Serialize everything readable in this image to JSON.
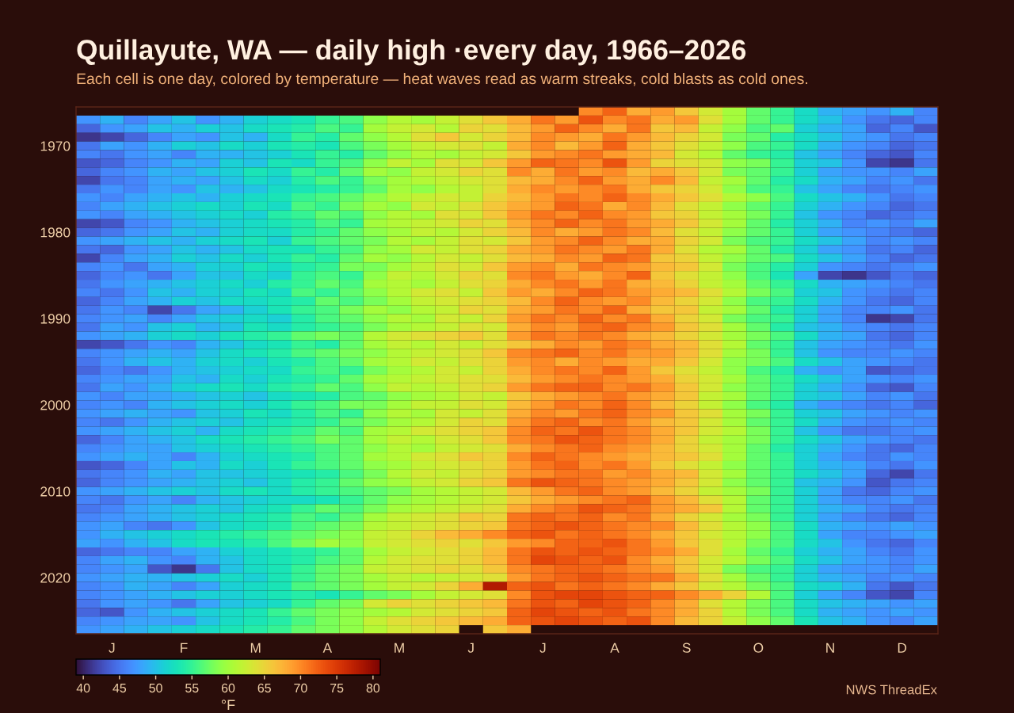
{
  "chart_data": {
    "type": "heatmap",
    "title": "Quillayute, WA — daily high ·every day, 1966–2026",
    "subtitle": "Each cell is one day, colored by temperature — heat waves read as warm streaks, cold blasts as cold ones.",
    "categories": [
      null,
      "J",
      null,
      null,
      "F",
      null,
      null,
      "M",
      null,
      null,
      "A",
      null,
      null,
      "M",
      null,
      null,
      "J",
      null,
      null,
      "J",
      null,
      null,
      "A",
      null,
      null,
      "S",
      null,
      null,
      "O",
      null,
      null,
      "N",
      null,
      null,
      "D",
      null
    ],
    "y_categories": [
      null,
      null,
      null,
      null,
      "1970",
      null,
      null,
      null,
      null,
      null,
      null,
      null,
      null,
      null,
      "1980",
      null,
      null,
      null,
      null,
      null,
      null,
      null,
      null,
      null,
      "1990",
      null,
      null,
      null,
      null,
      null,
      null,
      null,
      null,
      null,
      "2000",
      null,
      null,
      null,
      null,
      null,
      null,
      null,
      null,
      null,
      "2010",
      null,
      null,
      null,
      null,
      null,
      null,
      null,
      null,
      null,
      "2020",
      null,
      null,
      null,
      null,
      null,
      null
    ],
    "cells": [
      [
        null,
        null,
        null,
        null,
        null,
        null,
        null,
        null,
        null,
        null,
        null,
        null,
        null,
        null,
        null,
        null,
        null,
        null,
        null,
        null,
        null,
        70,
        72,
        68,
        69,
        66,
        63,
        60,
        57,
        55,
        52,
        49,
        48,
        47,
        49,
        46
      ],
      [
        47,
        49,
        46,
        48,
        50,
        47,
        49,
        51,
        52,
        53,
        55,
        56,
        59,
        61,
        60,
        62,
        64,
        66,
        68,
        71,
        69,
        73,
        70,
        71,
        68,
        69,
        64,
        60,
        57,
        55,
        52,
        50,
        47,
        45,
        44,
        46
      ],
      [
        44,
        47,
        48,
        50,
        49,
        51,
        50,
        52,
        53,
        54,
        56,
        55,
        60,
        62,
        63,
        61,
        65,
        64,
        67,
        69,
        72,
        70,
        68,
        71,
        66,
        67,
        62,
        59,
        56,
        57,
        51,
        49,
        48,
        44,
        46,
        43
      ],
      [
        41,
        42,
        44,
        46,
        48,
        47,
        50,
        49,
        52,
        55,
        54,
        57,
        59,
        61,
        64,
        66,
        63,
        65,
        67,
        70,
        69,
        68,
        71,
        69,
        67,
        65,
        63,
        58,
        57,
        54,
        52,
        50,
        48,
        47,
        45,
        46
      ],
      [
        45,
        48,
        47,
        49,
        51,
        50,
        52,
        51,
        53,
        54,
        53,
        56,
        58,
        60,
        62,
        63,
        64,
        62,
        68,
        70,
        67,
        69,
        72,
        68,
        66,
        64,
        62,
        59,
        56,
        55,
        52,
        49,
        47,
        46,
        44,
        45
      ],
      [
        46,
        45,
        47,
        48,
        46,
        49,
        49,
        50,
        51,
        53,
        55,
        54,
        57,
        59,
        61,
        60,
        62,
        63,
        66,
        69,
        70,
        71,
        69,
        68,
        67,
        63,
        61,
        57,
        55,
        54,
        50,
        48,
        46,
        44,
        43,
        46
      ],
      [
        43,
        44,
        46,
        47,
        49,
        48,
        51,
        50,
        53,
        52,
        55,
        56,
        59,
        62,
        60,
        64,
        63,
        66,
        69,
        72,
        71,
        70,
        73,
        69,
        65,
        64,
        63,
        59,
        58,
        55,
        51,
        50,
        47,
        42,
        41,
        45
      ],
      [
        44,
        46,
        47,
        49,
        48,
        50,
        51,
        53,
        52,
        55,
        54,
        57,
        60,
        59,
        62,
        63,
        65,
        64,
        70,
        68,
        71,
        69,
        70,
        67,
        68,
        66,
        63,
        58,
        57,
        55,
        51,
        48,
        47,
        47,
        46,
        48
      ],
      [
        42,
        45,
        46,
        48,
        49,
        48,
        50,
        52,
        51,
        54,
        56,
        55,
        58,
        60,
        61,
        62,
        63,
        64,
        67,
        68,
        70,
        72,
        69,
        68,
        70,
        67,
        62,
        60,
        57,
        54,
        52,
        49,
        48,
        46,
        47,
        45
      ],
      [
        45,
        47,
        46,
        48,
        47,
        50,
        49,
        50,
        52,
        53,
        54,
        55,
        57,
        60,
        59,
        61,
        62,
        64,
        68,
        70,
        69,
        70,
        71,
        68,
        66,
        65,
        63,
        59,
        56,
        55,
        50,
        48,
        46,
        45,
        46,
        47
      ],
      [
        47,
        46,
        48,
        49,
        50,
        49,
        51,
        52,
        53,
        55,
        56,
        57,
        59,
        61,
        62,
        63,
        62,
        65,
        67,
        69,
        71,
        70,
        72,
        70,
        68,
        66,
        64,
        61,
        59,
        56,
        52,
        50,
        49,
        47,
        45,
        46
      ],
      [
        46,
        48,
        49,
        50,
        51,
        52,
        51,
        53,
        52,
        56,
        55,
        58,
        60,
        59,
        63,
        62,
        64,
        66,
        68,
        69,
        72,
        71,
        68,
        70,
        67,
        64,
        62,
        59,
        57,
        55,
        51,
        49,
        47,
        46,
        44,
        45
      ],
      [
        47,
        46,
        48,
        49,
        50,
        51,
        52,
        51,
        54,
        55,
        57,
        56,
        59,
        61,
        60,
        64,
        63,
        66,
        69,
        71,
        70,
        72,
        70,
        69,
        66,
        65,
        62,
        60,
        58,
        55,
        50,
        47,
        46,
        44,
        45,
        46
      ],
      [
        42,
        43,
        46,
        47,
        49,
        50,
        51,
        52,
        53,
        54,
        56,
        55,
        60,
        61,
        62,
        63,
        65,
        64,
        68,
        70,
        72,
        70,
        71,
        69,
        68,
        66,
        63,
        60,
        57,
        54,
        51,
        49,
        46,
        47,
        46,
        48
      ],
      [
        44,
        45,
        47,
        48,
        50,
        49,
        51,
        52,
        52,
        54,
        55,
        57,
        59,
        60,
        62,
        61,
        63,
        65,
        67,
        70,
        68,
        69,
        71,
        70,
        67,
        64,
        62,
        59,
        57,
        55,
        51,
        48,
        47,
        46,
        45,
        44
      ],
      [
        47,
        48,
        49,
        50,
        49,
        51,
        52,
        53,
        51,
        55,
        56,
        57,
        58,
        61,
        60,
        62,
        64,
        63,
        66,
        69,
        70,
        72,
        70,
        68,
        68,
        65,
        63,
        58,
        56,
        55,
        52,
        50,
        48,
        46,
        47,
        46
      ],
      [
        45,
        44,
        47,
        48,
        50,
        49,
        50,
        52,
        53,
        53,
        55,
        56,
        59,
        60,
        63,
        62,
        64,
        65,
        68,
        69,
        71,
        70,
        69,
        71,
        68,
        64,
        61,
        60,
        57,
        54,
        51,
        48,
        47,
        45,
        46,
        44
      ],
      [
        42,
        46,
        48,
        49,
        51,
        50,
        52,
        51,
        53,
        55,
        54,
        57,
        60,
        59,
        61,
        63,
        62,
        64,
        67,
        68,
        70,
        69,
        72,
        71,
        66,
        65,
        62,
        59,
        57,
        56,
        52,
        50,
        48,
        46,
        44,
        45
      ],
      [
        46,
        47,
        45,
        48,
        49,
        51,
        51,
        53,
        52,
        54,
        55,
        58,
        58,
        60,
        62,
        64,
        63,
        66,
        69,
        70,
        68,
        71,
        70,
        69,
        67,
        66,
        63,
        58,
        56,
        54,
        51,
        47,
        46,
        45,
        46,
        47
      ],
      [
        44,
        46,
        47,
        45,
        48,
        50,
        50,
        52,
        51,
        55,
        56,
        55,
        59,
        62,
        61,
        63,
        65,
        64,
        70,
        71,
        69,
        68,
        70,
        72,
        66,
        64,
        62,
        59,
        56,
        53,
        48,
        42,
        41,
        43,
        45,
        44
      ],
      [
        45,
        47,
        48,
        49,
        50,
        51,
        52,
        51,
        54,
        55,
        57,
        56,
        60,
        61,
        60,
        62,
        64,
        65,
        68,
        70,
        71,
        69,
        71,
        68,
        67,
        65,
        62,
        60,
        57,
        55,
        52,
        49,
        48,
        47,
        46,
        45
      ],
      [
        46,
        45,
        47,
        50,
        49,
        51,
        51,
        53,
        52,
        56,
        55,
        57,
        59,
        61,
        63,
        64,
        62,
        66,
        69,
        68,
        70,
        72,
        71,
        69,
        68,
        67,
        64,
        61,
        58,
        56,
        51,
        50,
        47,
        46,
        45,
        46
      ],
      [
        44,
        46,
        48,
        49,
        51,
        50,
        52,
        52,
        53,
        54,
        57,
        56,
        58,
        60,
        62,
        63,
        64,
        65,
        67,
        70,
        72,
        70,
        69,
        70,
        67,
        65,
        63,
        59,
        56,
        55,
        52,
        49,
        47,
        45,
        44,
        46
      ],
      [
        45,
        47,
        46,
        42,
        45,
        48,
        49,
        51,
        53,
        55,
        56,
        58,
        60,
        59,
        61,
        62,
        65,
        64,
        68,
        69,
        71,
        70,
        72,
        68,
        66,
        66,
        62,
        60,
        57,
        54,
        51,
        48,
        46,
        46,
        47,
        45
      ],
      [
        46,
        47,
        48,
        46,
        48,
        50,
        51,
        52,
        51,
        54,
        56,
        57,
        59,
        61,
        60,
        63,
        62,
        65,
        69,
        71,
        70,
        72,
        70,
        71,
        68,
        65,
        63,
        58,
        56,
        55,
        51,
        48,
        46,
        41,
        42,
        45
      ],
      [
        45,
        48,
        47,
        50,
        51,
        49,
        50,
        53,
        52,
        54,
        55,
        56,
        58,
        60,
        61,
        62,
        64,
        63,
        68,
        70,
        69,
        71,
        72,
        70,
        69,
        66,
        64,
        60,
        57,
        54,
        50,
        49,
        47,
        46,
        45,
        46
      ],
      [
        47,
        48,
        49,
        51,
        52,
        51,
        53,
        54,
        55,
        57,
        58,
        57,
        61,
        63,
        64,
        65,
        66,
        64,
        69,
        71,
        70,
        71,
        70,
        68,
        67,
        65,
        63,
        60,
        58,
        56,
        52,
        49,
        48,
        45,
        44,
        46
      ],
      [
        42,
        43,
        45,
        47,
        46,
        49,
        50,
        52,
        53,
        55,
        54,
        57,
        60,
        62,
        61,
        63,
        62,
        64,
        66,
        68,
        70,
        69,
        71,
        70,
        68,
        67,
        64,
        61,
        57,
        55,
        50,
        48,
        47,
        46,
        45,
        47
      ],
      [
        46,
        47,
        48,
        49,
        48,
        50,
        52,
        53,
        54,
        56,
        57,
        58,
        59,
        61,
        62,
        63,
        64,
        66,
        70,
        71,
        72,
        70,
        71,
        69,
        69,
        67,
        64,
        60,
        58,
        55,
        50,
        47,
        46,
        46,
        47,
        46
      ],
      [
        45,
        47,
        49,
        50,
        49,
        51,
        52,
        51,
        53,
        54,
        56,
        57,
        60,
        61,
        63,
        62,
        64,
        65,
        69,
        70,
        68,
        70,
        69,
        68,
        68,
        66,
        63,
        59,
        58,
        56,
        52,
        50,
        48,
        47,
        46,
        45
      ],
      [
        44,
        46,
        45,
        47,
        49,
        50,
        51,
        52,
        52,
        55,
        56,
        55,
        58,
        60,
        61,
        63,
        62,
        65,
        68,
        70,
        71,
        70,
        72,
        69,
        66,
        64,
        62,
        59,
        56,
        54,
        49,
        47,
        48,
        43,
        44,
        45
      ],
      [
        46,
        47,
        48,
        48,
        50,
        49,
        52,
        51,
        53,
        54,
        55,
        57,
        60,
        61,
        62,
        63,
        64,
        64,
        67,
        69,
        70,
        71,
        70,
        69,
        68,
        65,
        63,
        60,
        57,
        55,
        52,
        50,
        48,
        47,
        46,
        47
      ],
      [
        45,
        48,
        47,
        49,
        51,
        52,
        53,
        52,
        54,
        55,
        57,
        56,
        59,
        62,
        61,
        62,
        64,
        65,
        69,
        71,
        72,
        72,
        70,
        71,
        69,
        66,
        63,
        59,
        57,
        55,
        51,
        49,
        47,
        44,
        43,
        46
      ],
      [
        47,
        46,
        48,
        48,
        49,
        50,
        51,
        50,
        52,
        53,
        54,
        56,
        57,
        59,
        60,
        61,
        63,
        62,
        66,
        68,
        69,
        70,
        71,
        69,
        68,
        66,
        62,
        60,
        57,
        55,
        51,
        50,
        48,
        46,
        47,
        45
      ],
      [
        46,
        47,
        46,
        49,
        50,
        51,
        52,
        51,
        53,
        55,
        56,
        58,
        58,
        60,
        62,
        62,
        64,
        63,
        67,
        69,
        71,
        70,
        72,
        70,
        67,
        65,
        62,
        59,
        56,
        54,
        49,
        47,
        46,
        45,
        46,
        44
      ],
      [
        47,
        48,
        49,
        48,
        47,
        50,
        51,
        53,
        52,
        54,
        56,
        55,
        59,
        61,
        60,
        63,
        62,
        64,
        68,
        70,
        69,
        71,
        72,
        70,
        69,
        66,
        64,
        60,
        58,
        55,
        51,
        50,
        48,
        47,
        46,
        47
      ],
      [
        46,
        45,
        47,
        49,
        50,
        51,
        50,
        52,
        53,
        54,
        55,
        57,
        58,
        60,
        61,
        63,
        65,
        64,
        69,
        71,
        72,
        70,
        71,
        69,
        67,
        66,
        63,
        60,
        57,
        55,
        52,
        49,
        47,
        46,
        47,
        46
      ],
      [
        47,
        48,
        49,
        50,
        51,
        49,
        52,
        53,
        54,
        55,
        57,
        56,
        60,
        61,
        63,
        64,
        65,
        66,
        70,
        72,
        71,
        73,
        71,
        70,
        68,
        66,
        63,
        61,
        58,
        55,
        50,
        47,
        45,
        45,
        46,
        47
      ],
      [
        44,
        46,
        48,
        49,
        50,
        52,
        53,
        54,
        55,
        56,
        58,
        57,
        60,
        62,
        61,
        63,
        64,
        66,
        70,
        71,
        73,
        72,
        71,
        70,
        68,
        65,
        62,
        60,
        58,
        55,
        52,
        50,
        48,
        47,
        46,
        45
      ],
      [
        46,
        47,
        48,
        48,
        50,
        51,
        52,
        53,
        54,
        55,
        56,
        57,
        59,
        61,
        60,
        62,
        63,
        64,
        68,
        70,
        71,
        72,
        70,
        69,
        67,
        65,
        63,
        60,
        57,
        54,
        51,
        49,
        47,
        45,
        44,
        46
      ],
      [
        47,
        48,
        49,
        48,
        46,
        49,
        51,
        52,
        53,
        54,
        56,
        57,
        60,
        61,
        63,
        64,
        66,
        65,
        70,
        72,
        71,
        70,
        69,
        68,
        67,
        66,
        64,
        60,
        57,
        55,
        51,
        48,
        46,
        45,
        47,
        46
      ],
      [
        43,
        44,
        46,
        48,
        50,
        49,
        52,
        51,
        53,
        55,
        56,
        57,
        59,
        60,
        62,
        63,
        64,
        65,
        69,
        71,
        72,
        70,
        71,
        69,
        66,
        64,
        62,
        59,
        57,
        55,
        51,
        49,
        48,
        46,
        45,
        47
      ],
      [
        45,
        46,
        47,
        49,
        48,
        50,
        50,
        51,
        52,
        53,
        54,
        56,
        58,
        61,
        63,
        62,
        64,
        65,
        69,
        70,
        71,
        71,
        69,
        70,
        68,
        67,
        63,
        60,
        57,
        55,
        52,
        50,
        48,
        44,
        42,
        45
      ],
      [
        44,
        46,
        47,
        48,
        49,
        50,
        51,
        50,
        52,
        54,
        55,
        57,
        59,
        60,
        62,
        63,
        65,
        66,
        71,
        73,
        72,
        71,
        70,
        69,
        68,
        66,
        63,
        59,
        57,
        55,
        50,
        49,
        47,
        43,
        45,
        46
      ],
      [
        47,
        48,
        49,
        50,
        51,
        50,
        52,
        53,
        52,
        54,
        55,
        56,
        57,
        58,
        60,
        61,
        62,
        63,
        67,
        69,
        71,
        72,
        70,
        69,
        67,
        65,
        62,
        60,
        58,
        55,
        51,
        48,
        45,
        44,
        46,
        47
      ],
      [
        46,
        45,
        47,
        48,
        46,
        49,
        50,
        51,
        52,
        52,
        53,
        55,
        57,
        59,
        60,
        61,
        62,
        63,
        66,
        68,
        69,
        70,
        71,
        72,
        69,
        67,
        64,
        61,
        57,
        55,
        51,
        48,
        46,
        46,
        47,
        45
      ],
      [
        45,
        46,
        48,
        49,
        50,
        51,
        50,
        52,
        53,
        55,
        57,
        56,
        58,
        60,
        61,
        62,
        63,
        64,
        68,
        70,
        71,
        73,
        72,
        71,
        69,
        68,
        66,
        61,
        57,
        55,
        51,
        49,
        48,
        46,
        45,
        46
      ],
      [
        46,
        47,
        48,
        49,
        50,
        51,
        52,
        53,
        54,
        56,
        55,
        57,
        60,
        62,
        63,
        64,
        66,
        65,
        71,
        72,
        71,
        72,
        70,
        71,
        68,
        65,
        63,
        60,
        58,
        55,
        51,
        48,
        46,
        45,
        44,
        46
      ],
      [
        47,
        48,
        46,
        45,
        47,
        50,
        52,
        53,
        54,
        56,
        57,
        58,
        61,
        62,
        63,
        64,
        65,
        66,
        71,
        72,
        73,
        72,
        71,
        70,
        70,
        67,
        64,
        61,
        59,
        56,
        52,
        49,
        48,
        47,
        48,
        47
      ],
      [
        47,
        49,
        50,
        51,
        52,
        53,
        54,
        55,
        56,
        57,
        58,
        59,
        62,
        63,
        65,
        67,
        68,
        70,
        72,
        73,
        71,
        72,
        71,
        70,
        68,
        66,
        63,
        61,
        59,
        56,
        52,
        48,
        46,
        46,
        47,
        48
      ],
      [
        48,
        47,
        49,
        50,
        52,
        53,
        53,
        54,
        56,
        58,
        60,
        59,
        62,
        63,
        64,
        65,
        64,
        66,
        69,
        70,
        72,
        72,
        73,
        71,
        69,
        66,
        64,
        61,
        58,
        56,
        52,
        50,
        47,
        45,
        44,
        46
      ],
      [
        44,
        45,
        46,
        46,
        48,
        49,
        51,
        52,
        53,
        54,
        55,
        57,
        60,
        62,
        63,
        64,
        65,
        67,
        71,
        73,
        72,
        73,
        72,
        71,
        70,
        68,
        64,
        60,
        57,
        55,
        51,
        49,
        48,
        46,
        45,
        47
      ],
      [
        46,
        48,
        49,
        47,
        46,
        49,
        50,
        52,
        53,
        54,
        56,
        57,
        61,
        63,
        64,
        64,
        65,
        67,
        71,
        74,
        73,
        72,
        73,
        70,
        68,
        66,
        63,
        61,
        58,
        56,
        52,
        50,
        48,
        47,
        46,
        47
      ],
      [
        46,
        47,
        48,
        43,
        41,
        45,
        50,
        52,
        53,
        55,
        57,
        58,
        62,
        63,
        64,
        65,
        64,
        66,
        70,
        71,
        72,
        72,
        71,
        70,
        69,
        66,
        63,
        58,
        56,
        55,
        51,
        48,
        47,
        47,
        46,
        48
      ],
      [
        47,
        48,
        49,
        49,
        50,
        51,
        52,
        51,
        53,
        55,
        57,
        58,
        60,
        62,
        61,
        62,
        63,
        64,
        69,
        71,
        72,
        73,
        72,
        71,
        71,
        68,
        64,
        60,
        57,
        55,
        51,
        49,
        48,
        46,
        47,
        46
      ],
      [
        46,
        47,
        49,
        48,
        46,
        48,
        51,
        52,
        53,
        56,
        57,
        58,
        60,
        62,
        63,
        65,
        68,
        78,
        72,
        73,
        71,
        72,
        71,
        70,
        68,
        66,
        63,
        61,
        58,
        56,
        52,
        51,
        49,
        45,
        43,
        45
      ],
      [
        46,
        47,
        48,
        49,
        50,
        51,
        51,
        52,
        53,
        54,
        53,
        55,
        57,
        58,
        60,
        62,
        63,
        64,
        70,
        73,
        74,
        74,
        73,
        72,
        72,
        70,
        68,
        65,
        61,
        56,
        51,
        48,
        46,
        43,
        42,
        46
      ],
      [
        45,
        47,
        48,
        47,
        45,
        48,
        50,
        51,
        52,
        55,
        57,
        58,
        63,
        65,
        64,
        65,
        66,
        67,
        71,
        73,
        72,
        74,
        73,
        72,
        70,
        68,
        64,
        61,
        58,
        56,
        52,
        50,
        49,
        48,
        47,
        48
      ],
      [
        44,
        43,
        47,
        49,
        50,
        51,
        52,
        53,
        55,
        57,
        58,
        59,
        60,
        61,
        63,
        64,
        65,
        66,
        72,
        74,
        73,
        72,
        73,
        71,
        70,
        68,
        65,
        61,
        58,
        56,
        52,
        49,
        48,
        47,
        48,
        47
      ],
      [
        46,
        47,
        48,
        48,
        47,
        50,
        52,
        53,
        54,
        56,
        58,
        59,
        62,
        64,
        65,
        66,
        67,
        68,
        72,
        73,
        74,
        73,
        72,
        73,
        70,
        67,
        65,
        62,
        59,
        57,
        53,
        50,
        49,
        47,
        46,
        48
      ],
      [
        47,
        48,
        49,
        50,
        51,
        52,
        53,
        54,
        55,
        57,
        58,
        59,
        61,
        63,
        64,
        65,
        null,
        66,
        68,
        null,
        null,
        null,
        null,
        null,
        null,
        null,
        null,
        null,
        null,
        null,
        null,
        null,
        null,
        null,
        null,
        null
      ]
    ],
    "clim": [
      39,
      81
    ],
    "cticks": [
      40,
      45,
      50,
      55,
      60,
      65,
      70,
      75,
      80
    ],
    "clabel": "°F",
    "annotations": [
      "NWS ThreadEx"
    ]
  }
}
